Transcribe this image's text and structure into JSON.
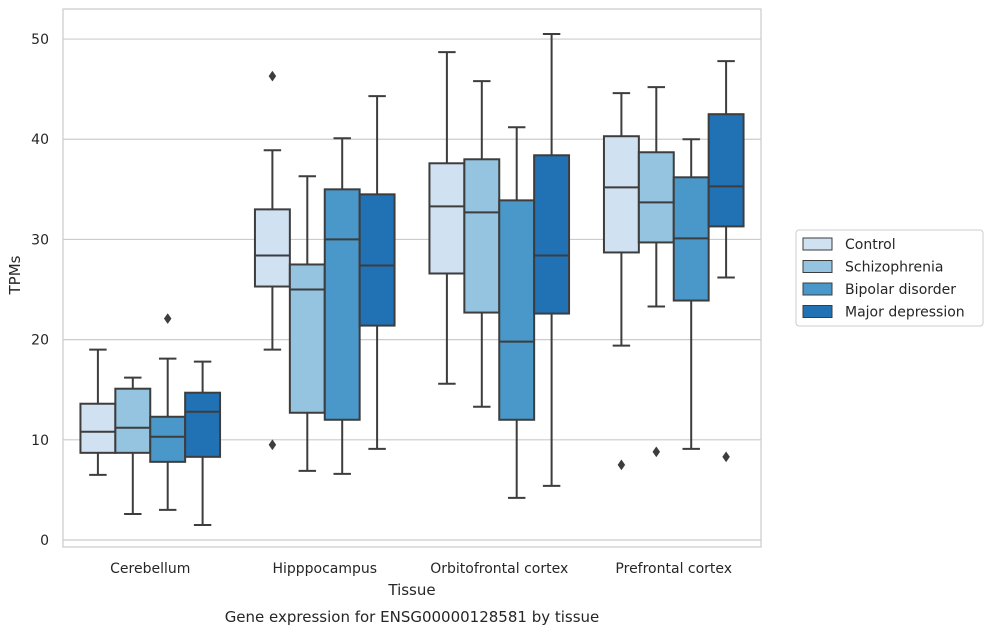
{
  "chart_data": {
    "type": "box",
    "title": "",
    "caption": "Gene expression for ENSG00000128581 by tissue",
    "xlabel": "Tissue",
    "ylabel": "TPMs",
    "ylim": [
      -0.7,
      53
    ],
    "yticks": [
      0,
      10,
      20,
      30,
      40,
      50
    ],
    "grid": "horizontal",
    "legend_position": "right",
    "categories": [
      "Cerebellum",
      "Hipppocampus",
      "Orbitofrontal cortex",
      "Prefrontal cortex"
    ],
    "series": [
      {
        "name": "Control",
        "color": "#d0e1f2",
        "boxes": [
          {
            "whisker_low": 6.5,
            "q1": 8.7,
            "median": 10.8,
            "q3": 13.6,
            "whisker_high": 19.0,
            "outliers": []
          },
          {
            "whisker_low": 19.0,
            "q1": 25.3,
            "median": 28.4,
            "q3": 33.0,
            "whisker_high": 38.9,
            "outliers": [
              46.3,
              9.5
            ]
          },
          {
            "whisker_low": 15.6,
            "q1": 26.6,
            "median": 33.3,
            "q3": 37.6,
            "whisker_high": 48.7,
            "outliers": []
          },
          {
            "whisker_low": 19.4,
            "q1": 28.7,
            "median": 35.2,
            "q3": 40.3,
            "whisker_high": 44.6,
            "outliers": [
              7.5
            ]
          }
        ]
      },
      {
        "name": "Schizophrenia",
        "color": "#94c4df",
        "boxes": [
          {
            "whisker_low": 2.6,
            "q1": 8.7,
            "median": 11.2,
            "q3": 15.1,
            "whisker_high": 16.2,
            "outliers": []
          },
          {
            "whisker_low": 6.9,
            "q1": 12.7,
            "median": 25.0,
            "q3": 27.5,
            "whisker_high": 36.3,
            "outliers": []
          },
          {
            "whisker_low": 13.3,
            "q1": 22.7,
            "median": 32.7,
            "q3": 38.0,
            "whisker_high": 45.8,
            "outliers": []
          },
          {
            "whisker_low": 23.3,
            "q1": 29.7,
            "median": 33.7,
            "q3": 38.7,
            "whisker_high": 45.2,
            "outliers": [
              8.8
            ]
          }
        ]
      },
      {
        "name": "Bipolar disorder",
        "color": "#4a98c9",
        "boxes": [
          {
            "whisker_low": 3.0,
            "q1": 7.8,
            "median": 10.3,
            "q3": 12.3,
            "whisker_high": 18.1,
            "outliers": [
              22.1
            ]
          },
          {
            "whisker_low": 6.6,
            "q1": 12.0,
            "median": 30.0,
            "q3": 35.0,
            "whisker_high": 40.1,
            "outliers": []
          },
          {
            "whisker_low": 4.2,
            "q1": 12.0,
            "median": 19.8,
            "q3": 33.9,
            "whisker_high": 41.2,
            "outliers": []
          },
          {
            "whisker_low": 9.1,
            "q1": 23.9,
            "median": 30.1,
            "q3": 36.2,
            "whisker_high": 40.0,
            "outliers": []
          }
        ]
      },
      {
        "name": "Major depression",
        "color": "#2171b5",
        "boxes": [
          {
            "whisker_low": 1.5,
            "q1": 8.3,
            "median": 12.8,
            "q3": 14.7,
            "whisker_high": 17.8,
            "outliers": []
          },
          {
            "whisker_low": 9.1,
            "q1": 21.4,
            "median": 27.4,
            "q3": 34.5,
            "whisker_high": 44.3,
            "outliers": []
          },
          {
            "whisker_low": 5.4,
            "q1": 22.6,
            "median": 28.4,
            "q3": 38.4,
            "whisker_high": 50.5,
            "outliers": []
          },
          {
            "whisker_low": 26.2,
            "q1": 31.3,
            "median": 35.3,
            "q3": 42.5,
            "whisker_high": 47.8,
            "outliers": [
              8.3
            ]
          }
        ]
      }
    ]
  }
}
